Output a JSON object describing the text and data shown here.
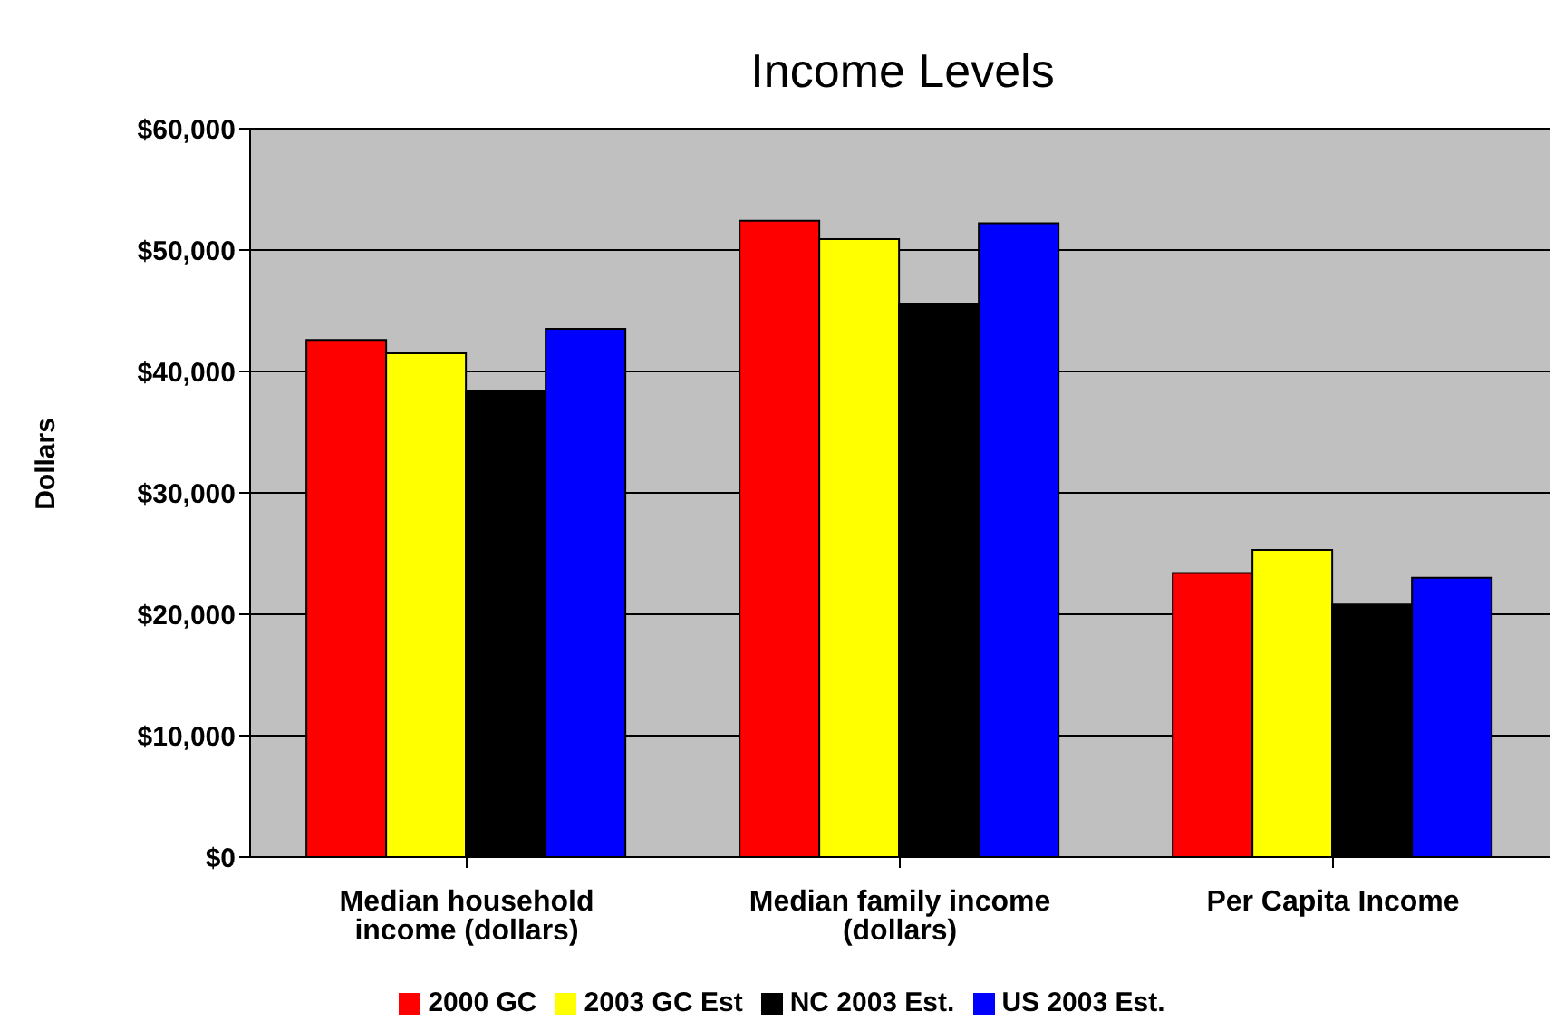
{
  "chart_data": {
    "type": "bar",
    "title": "Income Levels",
    "ylabel": "Dollars",
    "categories": [
      "Median household income (dollars)",
      "Median family income (dollars)",
      "Per Capita Income"
    ],
    "series": [
      {
        "name": "2000 GC",
        "color": "#ff0000",
        "values": [
          42600,
          52400,
          23400
        ]
      },
      {
        "name": "2003 GC Est",
        "color": "#ffff00",
        "values": [
          41500,
          50900,
          25300
        ]
      },
      {
        "name": "NC 2003 Est.",
        "color": "#000000",
        "values": [
          38400,
          45600,
          20800
        ]
      },
      {
        "name": "US 2003 Est.",
        "color": "#0000ff",
        "values": [
          43500,
          52200,
          23000
        ]
      }
    ],
    "ylim": [
      0,
      60000
    ],
    "yticks": [
      {
        "value": 0,
        "label": "$0"
      },
      {
        "value": 10000,
        "label": "$10,000"
      },
      {
        "value": 20000,
        "label": "$20,000"
      },
      {
        "value": 30000,
        "label": "$30,000"
      },
      {
        "value": 40000,
        "label": "$40,000"
      },
      {
        "value": 50000,
        "label": "$50,000"
      },
      {
        "value": 60000,
        "label": "$60,000"
      }
    ],
    "grid": "y",
    "legend": "bottom"
  }
}
